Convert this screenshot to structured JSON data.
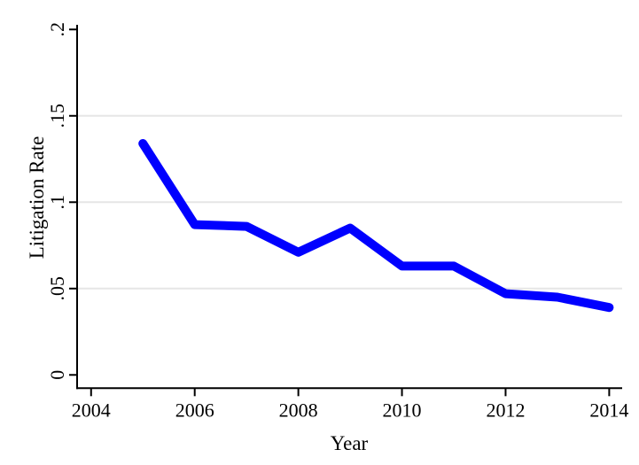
{
  "figure": {
    "background": "#ffffff"
  },
  "chart_data": {
    "type": "line",
    "title": "",
    "xlabel": "Year",
    "ylabel": "Litigation Rate",
    "x": [
      2005,
      2006,
      2007,
      2008,
      2009,
      2010,
      2011,
      2012,
      2013,
      2014
    ],
    "series": [
      {
        "name": "Litigation Rate",
        "color": "#0000ff",
        "values": [
          0.134,
          0.087,
          0.086,
          0.071,
          0.085,
          0.063,
          0.063,
          0.047,
          0.045,
          0.039
        ]
      }
    ],
    "line_width": 10,
    "x_ticks": [
      {
        "value": 2004,
        "label": "2004"
      },
      {
        "value": 2006,
        "label": "2006"
      },
      {
        "value": 2008,
        "label": "2008"
      },
      {
        "value": 2010,
        "label": "2010"
      },
      {
        "value": 2012,
        "label": "2012"
      },
      {
        "value": 2014,
        "label": "2014"
      }
    ],
    "y_ticks": [
      {
        "value": 0,
        "label": "0"
      },
      {
        "value": 0.05,
        "label": ".05"
      },
      {
        "value": 0.1,
        "label": ".1"
      },
      {
        "value": 0.15,
        "label": ".15"
      },
      {
        "value": 0.2,
        "label": ".2"
      }
    ],
    "gridlines_y": [
      0.05,
      0.1,
      0.15
    ],
    "xlim": [
      2003.73,
      2014.25
    ],
    "ylim": [
      -0.0077,
      0.2027
    ],
    "grid": true,
    "legend": "none",
    "colors": {
      "line": "#0000ff",
      "grid": "#e6e6e6",
      "axis": "#000000",
      "text": "#000000",
      "background": "#ffffff"
    }
  }
}
